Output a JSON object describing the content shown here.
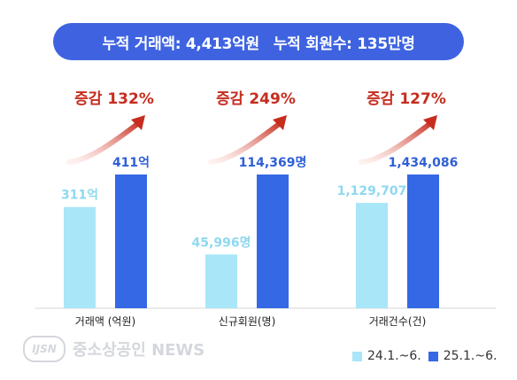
{
  "banner": {
    "part1": "누적 거래액: 4,413억원",
    "part2": "누적 회원수: 135만명"
  },
  "watermark": {
    "logo": "IJSN",
    "text": "중소상공인 NEWS"
  },
  "colors": {
    "banner": "#3f63e0",
    "series_prev": "#a9e6f8",
    "series_curr": "#3568e5",
    "label_prev": "#8fd8f0",
    "label_curr": "#2f5fd7",
    "increase": "#c62d1f",
    "arrow_start": "#fbd6cf",
    "arrow_end": "#c62d1f"
  },
  "chart_data": {
    "type": "bar",
    "categories": [
      "거래액 (억원)",
      "신규회원(명)",
      "거래건수(건)"
    ],
    "series": [
      {
        "name": "24.1.~6.",
        "values": [
          311,
          45996,
          1129707
        ],
        "labels": [
          "311억",
          "45,996명",
          "1,129,707"
        ]
      },
      {
        "name": "25.1.~6.",
        "values": [
          411,
          114369,
          1434086
        ],
        "labels": [
          "411억",
          "114,369명",
          "1,434,086"
        ]
      }
    ],
    "increase_labels": [
      "증감 132%",
      "증감 249%",
      "증감 127%"
    ],
    "legend_position": "bottom-right",
    "grid": false
  }
}
